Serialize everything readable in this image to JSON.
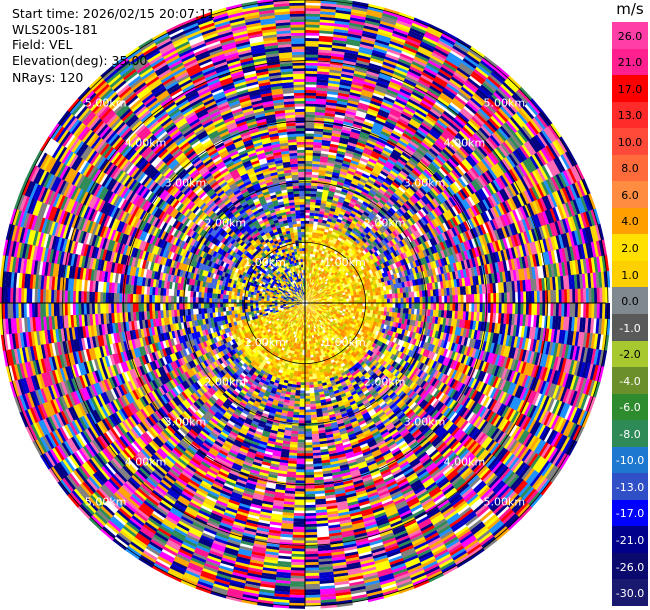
{
  "header": {
    "start_time": "Start time: 2026/02/15 20:07:11",
    "instrument": "WLS200s-181",
    "field": "Field: VEL",
    "elevation": "Elevation(deg): 35.00",
    "nrays": "NRays: 120"
  },
  "chart_data": {
    "type": "heatmap",
    "subtype": "polar-ppi",
    "field": "VEL",
    "units": "m/s",
    "n_rays": 120,
    "elevation_deg": 35.0,
    "max_range_km": 5.0,
    "range_rings_km": [
      1,
      2,
      3,
      4,
      5
    ],
    "range_ring_labels": [
      "1.00km",
      "2.00km",
      "3.00km",
      "4.00km",
      "5.00km"
    ],
    "colorbar": {
      "unit_label": "m/s",
      "levels": [
        "26.0",
        "21.0",
        "17.0",
        "13.0",
        "10.0",
        "8.0",
        "6.0",
        "4.0",
        "2.0",
        "1.0",
        "0.0",
        "-1.0",
        "-2.0",
        "-4.0",
        "-6.0",
        "-8.0",
        "-10.0",
        "-13.0",
        "-17.0",
        "-21.0",
        "-26.0",
        "-30.0"
      ],
      "colors": [
        "#ff3ea8",
        "#ff1f8f",
        "#ff0000",
        "#ff2a2a",
        "#ff4a3a",
        "#ff6b3b",
        "#ff8c40",
        "#ffa000",
        "#ffe000",
        "#ffd000",
        "#808890",
        "#5a5a5a",
        "#a8c830",
        "#6b8f2a",
        "#2e8b2e",
        "#2e8b57",
        "#1e78d0",
        "#3050c8",
        "#0000ff",
        "#00008b",
        "#0a0a6e",
        "#191970"
      ]
    },
    "palette": {
      "near_range": [
        "#ffff00",
        "#ffd700",
        "#ffa500",
        "#ffff66",
        "#cccc00",
        "#ff8c00"
      ],
      "mid_range": [
        "#ffff00",
        "#ffa500",
        "#ff1493",
        "#0000ff",
        "#00008b",
        "#808080",
        "#2e8b57",
        "#ffd700",
        "#ff69b4",
        "#4169e1"
      ],
      "far_range": [
        "#ff1493",
        "#ff00ff",
        "#0000cd",
        "#00008b",
        "#ffff00",
        "#ffa500",
        "#ff0000",
        "#2e8b57",
        "#808080",
        "#ffd700",
        "#000080",
        "#ff69b4",
        "#1e90ff"
      ]
    }
  }
}
